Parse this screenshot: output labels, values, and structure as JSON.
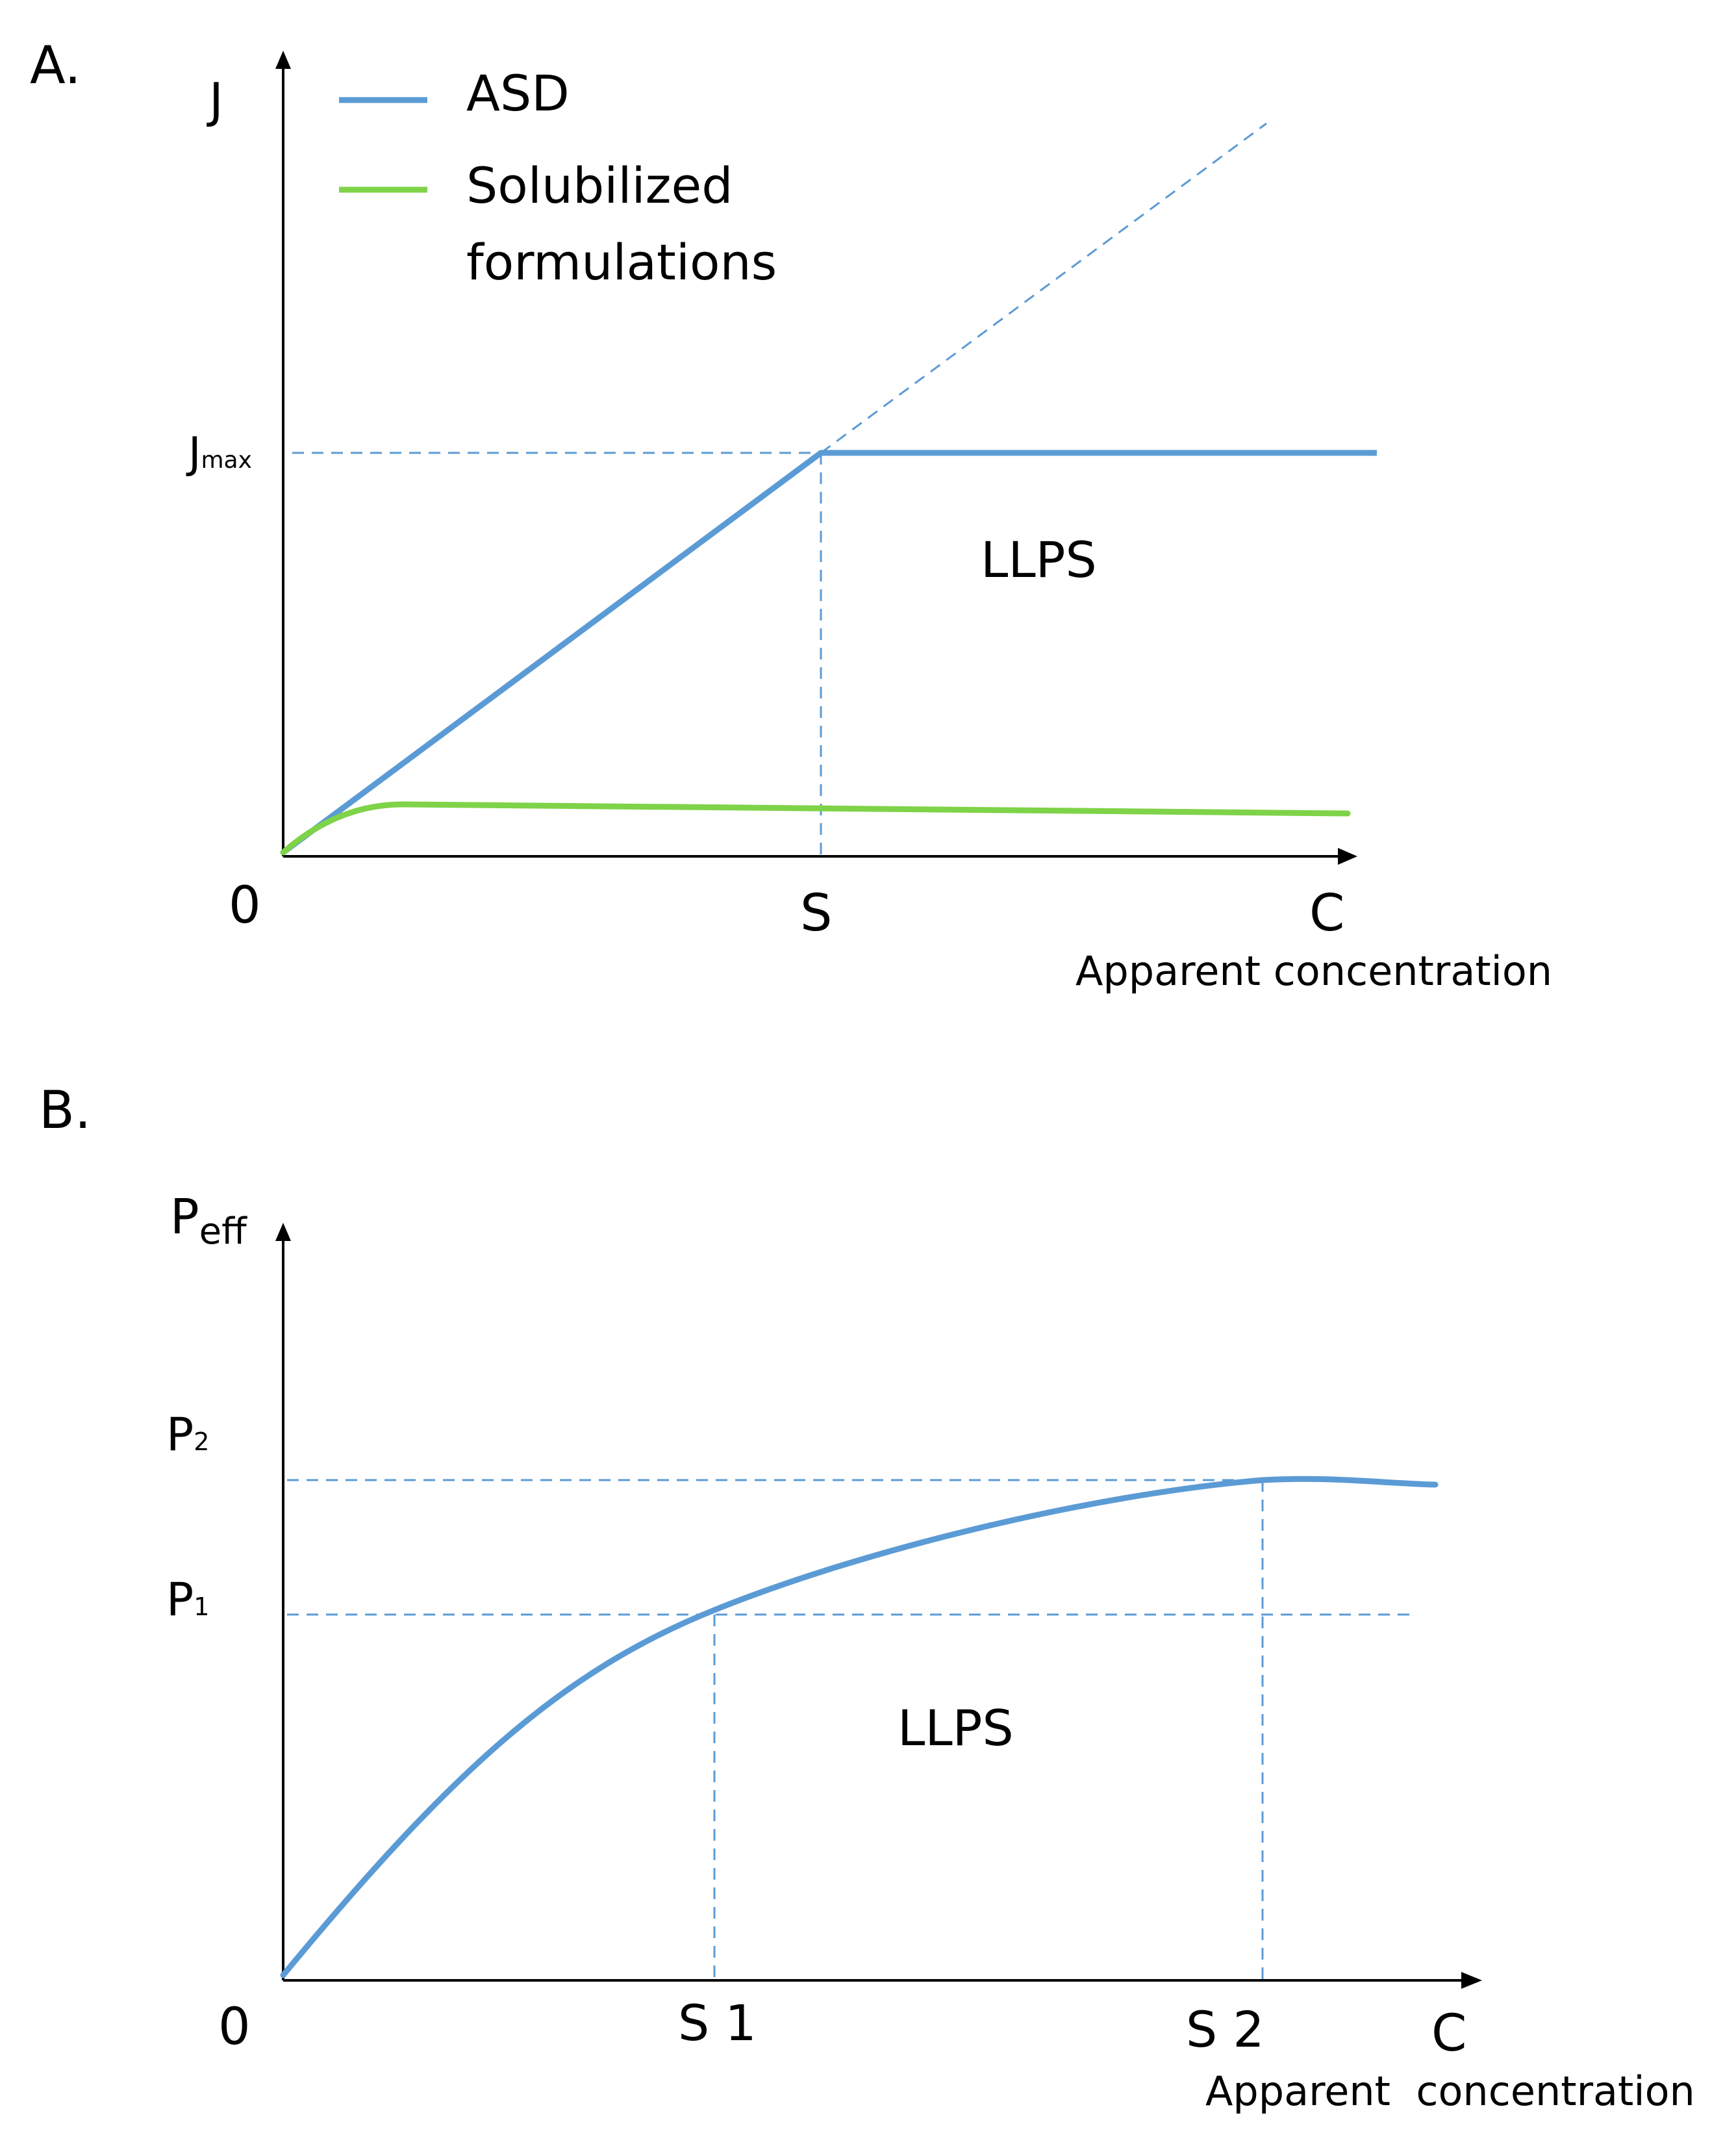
{
  "panels": {
    "a": {
      "label": "A.",
      "y_axis_label": "J",
      "y_tick_jmax_main": "J",
      "y_tick_jmax_sub": "max",
      "x_origin": "0",
      "x_tick_s": "S",
      "x_tick_c": "C",
      "x_axis_label": "Apparent concentration",
      "region_label": "LLPS",
      "legend": [
        {
          "label": "ASD",
          "color": "#5b9bd5"
        },
        {
          "label_line1": "Solubilized",
          "label_line2": "formulations",
          "color": "#7ed348"
        }
      ]
    },
    "b": {
      "label": "B.",
      "y_axis_label_main": "P",
      "y_axis_label_sub": "eff",
      "y_tick_p2_main": "P",
      "y_tick_p2_sub": "2",
      "y_tick_p1_main": "P",
      "y_tick_p1_sub": "1",
      "x_origin": "0",
      "x_tick_s1": "S 1",
      "x_tick_s2": "S 2",
      "x_tick_c": "C",
      "x_axis_label": "Apparent  concentration",
      "region_label": "LLPS",
      "curve_color": "#5b9bd5"
    }
  }
}
